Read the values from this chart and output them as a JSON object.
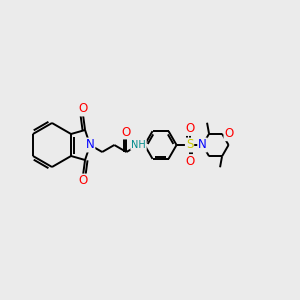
{
  "background_color": "#ebebeb",
  "bond_color": "#000000",
  "line_width": 1.4,
  "atom_colors": {
    "O": "#ff0000",
    "N": "#0000ff",
    "S": "#cccc00",
    "H": "#008b8b",
    "C": "#000000"
  },
  "font_size": 7.5,
  "fig_width": 3.0,
  "fig_height": 3.0,
  "dpi": 100
}
